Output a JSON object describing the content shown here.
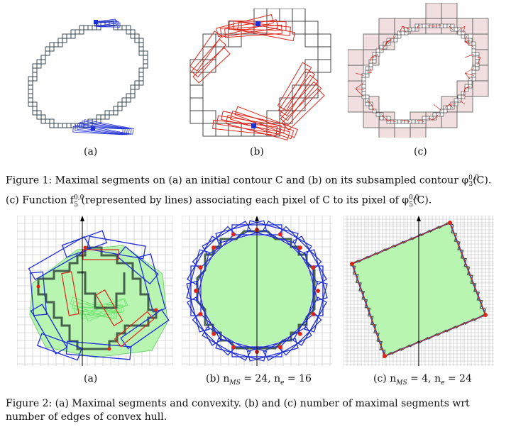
{
  "figure1": {
    "labels": [
      "(a)",
      "(b)",
      "(c)"
    ],
    "caption_line1": "Figure 1:  Maximal segments on (a) an initial contour C and (b) on its subsampled contour φ",
    "caption_line1_sup": "0,0",
    "caption_line1_sub": "3",
    "caption_line1_end": "(C).",
    "caption_line2_a": "(c) Function f",
    "caption_line2_sup": "0,0",
    "caption_line2_sub": "5",
    "caption_line2_b": " (represented by lines) associating each pixel of C to its pixel of φ",
    "caption_line2_sup2": "0,0",
    "caption_line2_sub2": "5",
    "caption_line2_end": "(C)."
  },
  "figure2": {
    "labels": [
      "(a)",
      "(b) n",
      "(c) n"
    ],
    "label_b_sub1": "MS",
    "label_b_mid": " = 24, n",
    "label_b_sub2": "e",
    "label_b_end": " = 16",
    "label_c_sub1": "MS",
    "label_c_mid": " = 4, n",
    "label_c_sub2": "e",
    "label_c_end": " = 24",
    "caption_line1": "Figure 2:  (a) Maximal segments and convexity.  (b) and (c) number of maximal segments wrt",
    "caption_line2": "number of edges of convex hull."
  },
  "colors": {
    "pixel_outline": "#2a3b45",
    "blue": "#1f2fd6",
    "red": "#e0251b",
    "green_fill": "#b8f5b0",
    "pink_fill": "#f1dede",
    "grid": "#bdbdbd"
  }
}
